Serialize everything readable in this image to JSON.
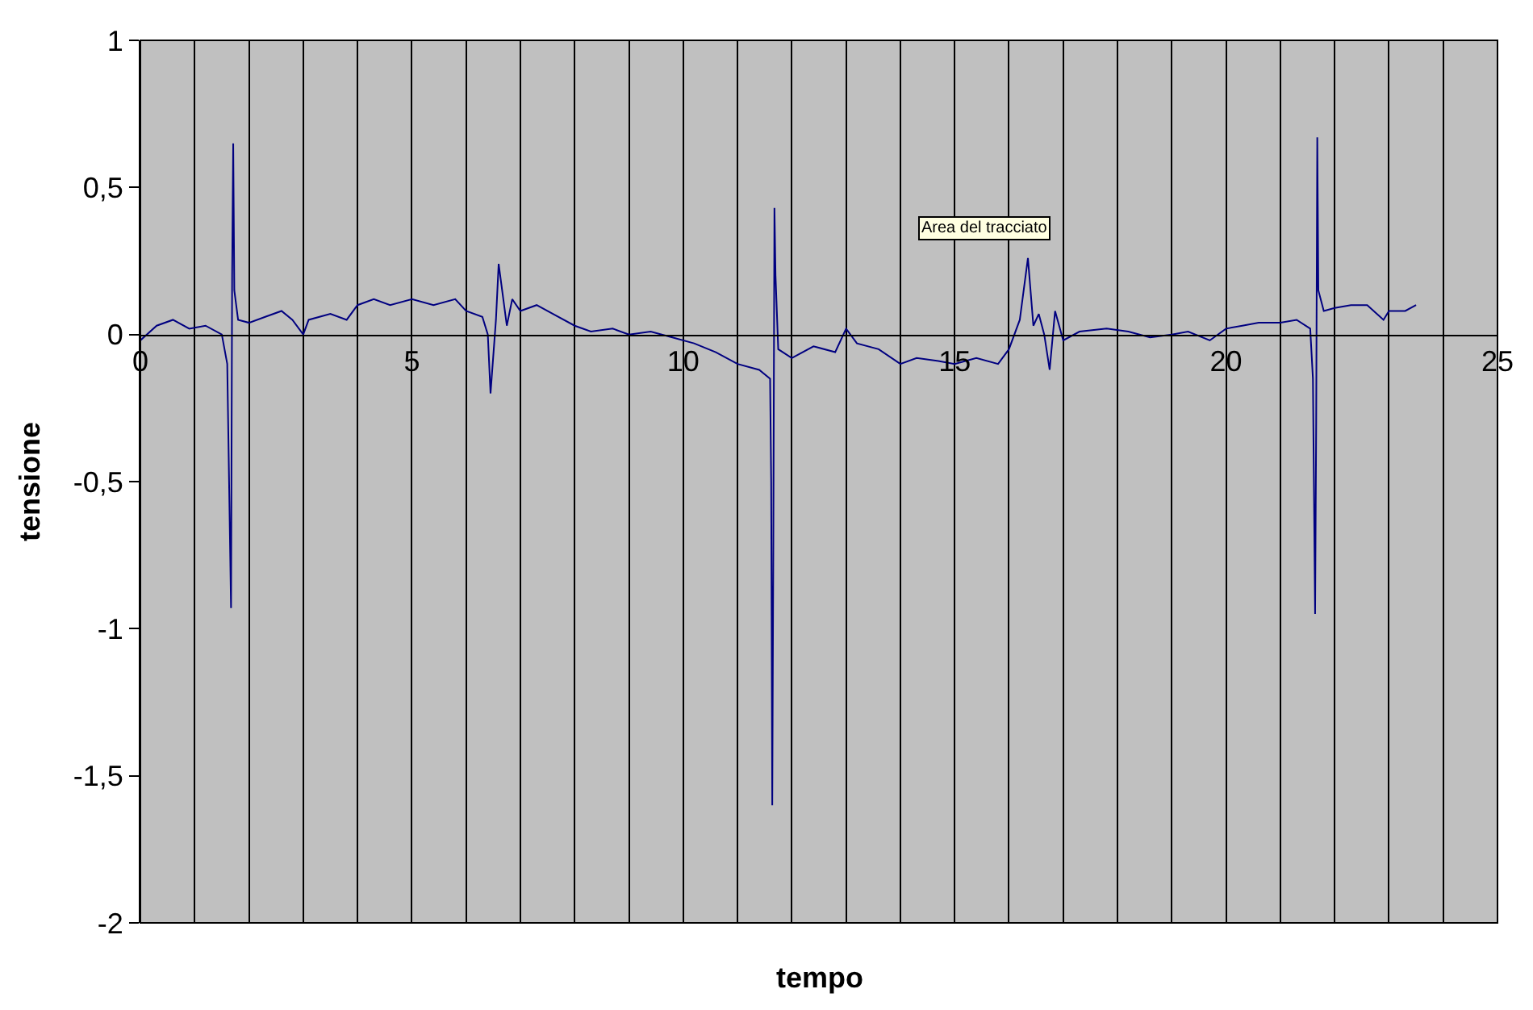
{
  "chart_data": {
    "type": "line",
    "xlabel": "tempo",
    "ylabel": "tensione",
    "annotations": [
      "Area del tracciato"
    ],
    "series": [
      {
        "color": "#000080",
        "x": [
          0,
          0.3,
          0.6,
          0.9,
          1.2,
          1.5,
          1.6,
          1.67,
          1.69,
          1.71,
          1.73,
          1.8,
          2.0,
          2.3,
          2.6,
          2.8,
          3.0,
          3.1,
          3.5,
          3.8,
          4.0,
          4.3,
          4.6,
          5.0,
          5.4,
          5.8,
          6.0,
          6.3,
          6.4,
          6.45,
          6.55,
          6.6,
          6.7,
          6.75,
          6.85,
          7.0,
          7.3,
          7.6,
          8.0,
          8.3,
          8.7,
          9.0,
          9.4,
          9.8,
          10.2,
          10.6,
          11.0,
          11.4,
          11.6,
          11.62,
          11.64,
          11.66,
          11.68,
          11.7,
          11.75,
          12.0,
          12.4,
          12.8,
          13.0,
          13.2,
          13.6,
          14.0,
          14.3,
          14.7,
          15.0,
          15.4,
          15.8,
          16.0,
          16.2,
          16.35,
          16.45,
          16.55,
          16.65,
          16.75,
          16.85,
          17.0,
          17.3,
          17.8,
          18.2,
          18.6,
          19.0,
          19.3,
          19.7,
          20.0,
          20.3,
          20.6,
          21.0,
          21.3,
          21.55,
          21.6,
          21.64,
          21.66,
          21.68,
          21.7,
          21.8,
          22.0,
          22.3,
          22.6,
          22.9,
          23.0,
          23.3,
          23.5
        ],
        "values": [
          -0.02,
          0.03,
          0.05,
          0.02,
          0.03,
          0.0,
          -0.1,
          -0.93,
          0.2,
          0.65,
          0.15,
          0.05,
          0.04,
          0.06,
          0.08,
          0.05,
          0.0,
          0.05,
          0.07,
          0.05,
          0.1,
          0.12,
          0.1,
          0.12,
          0.1,
          0.12,
          0.08,
          0.06,
          0.0,
          -0.2,
          0.05,
          0.24,
          0.1,
          0.03,
          0.12,
          0.08,
          0.1,
          0.07,
          0.03,
          0.01,
          0.02,
          0.0,
          0.01,
          -0.01,
          -0.03,
          -0.06,
          -0.1,
          -0.12,
          -0.15,
          -0.5,
          -1.6,
          -0.7,
          0.43,
          0.2,
          -0.05,
          -0.08,
          -0.04,
          -0.06,
          0.02,
          -0.03,
          -0.05,
          -0.1,
          -0.08,
          -0.09,
          -0.1,
          -0.08,
          -0.1,
          -0.05,
          0.05,
          0.26,
          0.03,
          0.07,
          0.0,
          -0.12,
          0.08,
          -0.02,
          0.01,
          0.02,
          0.01,
          -0.01,
          0.0,
          0.01,
          -0.02,
          0.02,
          0.03,
          0.04,
          0.04,
          0.05,
          0.02,
          -0.15,
          -0.95,
          -0.3,
          0.67,
          0.15,
          0.08,
          0.09,
          0.1,
          0.1,
          0.05,
          0.08,
          0.08,
          0.1
        ]
      }
    ],
    "xlim": [
      0,
      25
    ],
    "xticks": [
      0,
      {
        "value": 1,
        "label": null
      },
      {
        "value": 2,
        "label": null
      },
      {
        "value": 3,
        "label": null
      },
      {
        "value": 4,
        "label": null
      },
      5,
      {
        "value": 6,
        "label": null
      },
      {
        "value": 7,
        "label": null
      },
      {
        "value": 8,
        "label": null
      },
      {
        "value": 9,
        "label": null
      },
      10,
      {
        "value": 11,
        "label": null
      },
      {
        "value": 12,
        "label": null
      },
      {
        "value": 13,
        "label": null
      },
      {
        "value": 14,
        "label": null
      },
      15,
      {
        "value": 16,
        "label": null
      },
      {
        "value": 17,
        "label": null
      },
      {
        "value": 18,
        "label": null
      },
      {
        "value": 19,
        "label": null
      },
      20,
      {
        "value": 21,
        "label": null
      },
      {
        "value": 22,
        "label": null
      },
      {
        "value": 23,
        "label": null
      },
      {
        "value": 24,
        "label": null
      },
      25
    ],
    "ylim": [
      -2,
      1
    ],
    "yticks": [
      -2,
      {
        "value": -1.5,
        "label": "-1,5"
      },
      -1,
      {
        "value": -0.5,
        "label": "-0,5"
      },
      0,
      {
        "value": 0.5,
        "label": "0,5"
      },
      1
    ],
    "grid": "x",
    "marker": "none",
    "line_style": "solid"
  }
}
